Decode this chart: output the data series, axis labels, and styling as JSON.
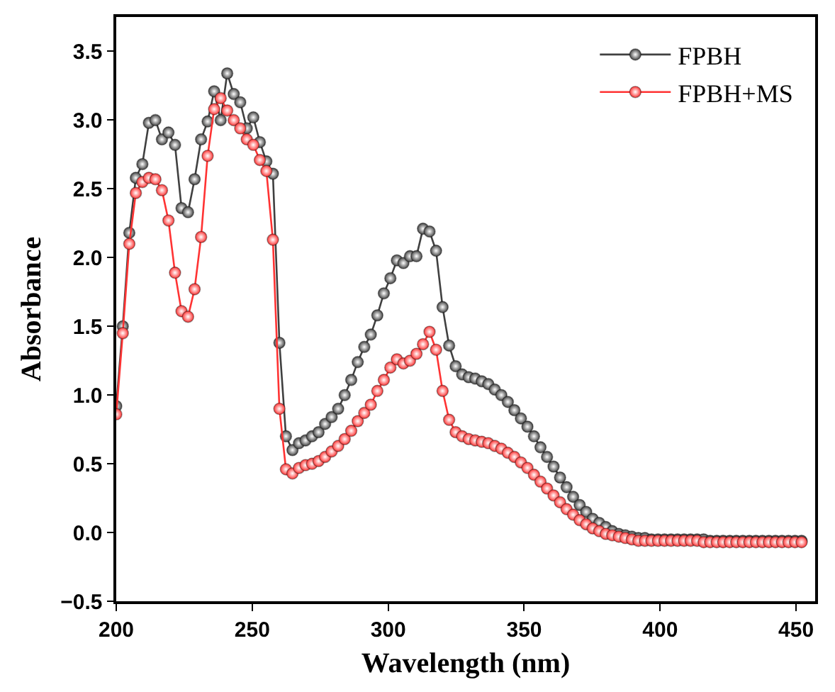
{
  "chart_data": {
    "type": "line",
    "xlabel": "Wavelength (nm)",
    "ylabel": "Absorbance",
    "marker": "circle",
    "line_style": "solid",
    "legend": "top right",
    "grid": false,
    "x": [
      200,
      202.4,
      204.8,
      207.2,
      209.6,
      212,
      214.4,
      216.8,
      219.2,
      221.6,
      224,
      226.4,
      228.8,
      231.2,
      233.6,
      236,
      238.4,
      240.8,
      243.2,
      245.6,
      248,
      250.4,
      252.8,
      255.2,
      257.6,
      260,
      262.4,
      264.8,
      267.2,
      269.6,
      272,
      274.4,
      276.8,
      279.2,
      281.6,
      284,
      286.4,
      288.8,
      291.2,
      293.6,
      296,
      298.4,
      300.8,
      303.2,
      305.6,
      308,
      310.4,
      312.8,
      315.2,
      317.6,
      320,
      322.4,
      324.8,
      327.2,
      329.6,
      332,
      334.4,
      336.8,
      339.2,
      341.6,
      344,
      346.4,
      348.8,
      351.2,
      353.6,
      356,
      358.4,
      360.8,
      363.2,
      365.6,
      368,
      370.4,
      372.8,
      375.2,
      377.6,
      380,
      382.4,
      384.8,
      387.2,
      389.6,
      392,
      394.4,
      396.8,
      399.2,
      401.6,
      404,
      406.4,
      408.8,
      411.2,
      413.6,
      416,
      418.4,
      420.8,
      423.2,
      425.6,
      428,
      430.4,
      432.8,
      435.2,
      437.6,
      440,
      442.4,
      444.8,
      447.2,
      449.6,
      452
    ],
    "series": [
      {
        "name": "FPBH",
        "color": "#404040",
        "values": [
          0.92,
          1.5,
          2.18,
          2.58,
          2.68,
          2.98,
          3.0,
          2.86,
          2.91,
          2.82,
          2.36,
          2.33,
          2.57,
          2.86,
          2.99,
          3.21,
          3.0,
          3.34,
          3.19,
          3.13,
          2.94,
          3.02,
          2.84,
          2.7,
          2.61,
          1.38,
          0.7,
          0.6,
          0.65,
          0.67,
          0.7,
          0.73,
          0.79,
          0.84,
          0.9,
          1.0,
          1.11,
          1.24,
          1.35,
          1.44,
          1.58,
          1.74,
          1.85,
          1.98,
          1.96,
          2.01,
          2.01,
          2.21,
          2.19,
          2.05,
          1.64,
          1.36,
          1.21,
          1.15,
          1.13,
          1.12,
          1.1,
          1.08,
          1.04,
          1.0,
          0.95,
          0.89,
          0.83,
          0.77,
          0.7,
          0.62,
          0.55,
          0.48,
          0.4,
          0.33,
          0.26,
          0.2,
          0.15,
          0.1,
          0.07,
          0.04,
          0.01,
          -0.01,
          -0.02,
          -0.03,
          -0.04,
          -0.04,
          -0.05,
          -0.05,
          -0.05,
          -0.05,
          -0.05,
          -0.05,
          -0.05,
          -0.05,
          -0.05,
          -0.06,
          -0.06,
          -0.06,
          -0.06,
          -0.06,
          -0.06,
          -0.06,
          -0.06,
          -0.06,
          -0.06,
          -0.06,
          -0.06,
          -0.06,
          -0.06,
          -0.06
        ]
      },
      {
        "name": "FPBH+MS",
        "color": "#ff3333",
        "values": [
          0.86,
          1.45,
          2.1,
          2.47,
          2.55,
          2.58,
          2.57,
          2.49,
          2.27,
          1.89,
          1.61,
          1.57,
          1.77,
          2.15,
          2.74,
          3.08,
          3.16,
          3.07,
          3.0,
          2.94,
          2.86,
          2.82,
          2.71,
          2.63,
          2.13,
          0.9,
          0.46,
          0.43,
          0.47,
          0.49,
          0.5,
          0.52,
          0.55,
          0.59,
          0.63,
          0.68,
          0.74,
          0.81,
          0.87,
          0.93,
          1.03,
          1.11,
          1.2,
          1.26,
          1.23,
          1.25,
          1.3,
          1.37,
          1.46,
          1.33,
          1.03,
          0.82,
          0.73,
          0.7,
          0.68,
          0.67,
          0.66,
          0.65,
          0.63,
          0.61,
          0.58,
          0.55,
          0.51,
          0.47,
          0.42,
          0.37,
          0.32,
          0.27,
          0.22,
          0.17,
          0.13,
          0.09,
          0.06,
          0.03,
          0.01,
          -0.01,
          -0.02,
          -0.03,
          -0.04,
          -0.05,
          -0.06,
          -0.06,
          -0.06,
          -0.06,
          -0.06,
          -0.06,
          -0.06,
          -0.06,
          -0.06,
          -0.06,
          -0.07,
          -0.07,
          -0.07,
          -0.07,
          -0.07,
          -0.07,
          -0.07,
          -0.07,
          -0.07,
          -0.07,
          -0.07,
          -0.07,
          -0.07,
          -0.07,
          -0.07,
          -0.07
        ]
      }
    ],
    "xlim": [
      200,
      457
    ],
    "xticks": [
      200,
      250,
      300,
      350,
      400,
      450
    ],
    "ylim": [
      -0.5,
      3.75
    ],
    "yticks": [
      {
        "value": -0.5,
        "label": "−0.5"
      },
      {
        "value": 0,
        "label": "0.0"
      },
      {
        "value": 0.5,
        "label": "0.5"
      },
      {
        "value": 1,
        "label": "1.0"
      },
      {
        "value": 1.5,
        "label": "1.5"
      },
      {
        "value": 2,
        "label": "2.0"
      },
      {
        "value": 2.5,
        "label": "2.5"
      },
      {
        "value": 3,
        "label": "3.0"
      },
      {
        "value": 3.5,
        "label": "3.5"
      }
    ]
  }
}
